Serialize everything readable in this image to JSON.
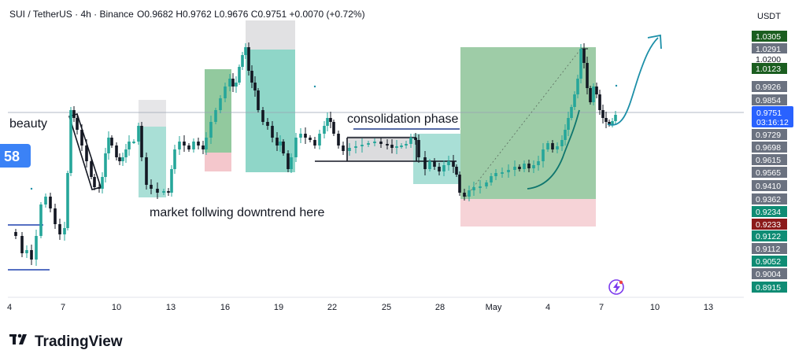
{
  "header": {
    "symbol": "SUI / TetherUS · 4h · Binance",
    "ohlc": "O0.9682 H0.9762 L0.9676 C0.9751 +0.0070 (+0.72%)"
  },
  "currency": "USDT",
  "brand": "TradingView",
  "left_badge": "58",
  "colors": {
    "up": "#26a69a",
    "down": "#131722",
    "accent": "#2962ff",
    "long_zone": "#5aa66f",
    "stop_zone": "#f4b7bf",
    "arrow": "#1c8fa8"
  },
  "chart_data": {
    "type": "candlestick",
    "annotations": [
      {
        "id": "beauty",
        "text": "beauty"
      },
      {
        "id": "consolidation",
        "text": "consolidation phase"
      },
      {
        "id": "downtrend",
        "text": "market follwing downtrend here"
      }
    ],
    "x_ticks": [
      "4",
      "7",
      "10",
      "13",
      "16",
      "19",
      "22",
      "25",
      "28",
      "May",
      "4",
      "7",
      "10",
      "13"
    ],
    "price_labels": [
      {
        "value": "1.0305",
        "style": "dark-green"
      },
      {
        "value": "1.0291",
        "style": "gray"
      },
      {
        "value": "1.0200",
        "style": "plain"
      },
      {
        "value": "1.0123",
        "style": "dark-green"
      },
      {
        "value": "0.9926",
        "style": "gray"
      },
      {
        "value": "0.9854",
        "style": "gray"
      },
      {
        "value": "0.9751",
        "style": "current"
      },
      {
        "value": "0.9729",
        "style": "gray"
      },
      {
        "value": "0.9698",
        "style": "gray"
      },
      {
        "value": "0.9615",
        "style": "gray"
      },
      {
        "value": "0.9565",
        "style": "gray"
      },
      {
        "value": "0.9410",
        "style": "gray"
      },
      {
        "value": "0.9362",
        "style": "gray"
      },
      {
        "value": "0.9234",
        "style": "teal"
      },
      {
        "value": "0.9233",
        "style": "red"
      },
      {
        "value": "0.9122",
        "style": "teal"
      },
      {
        "value": "0.9112",
        "style": "gray"
      },
      {
        "value": "0.9052",
        "style": "teal"
      },
      {
        "value": "0.9004",
        "style": "gray"
      },
      {
        "value": "0.8915",
        "style": "teal"
      }
    ],
    "current_price": {
      "value": "0.9751",
      "countdown": "03:16:12"
    }
  }
}
